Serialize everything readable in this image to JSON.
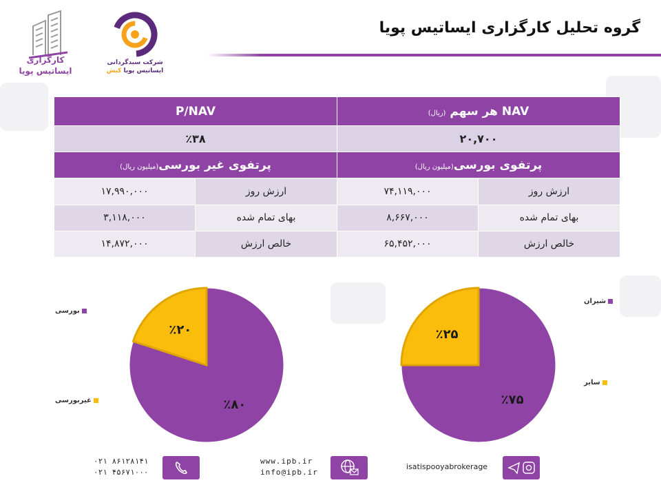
{
  "header": {
    "title": "گروه تحلیل کارگزاری ایساتیس پویا",
    "logo_left_text": [
      "کارگزاری",
      "ایساتیس پویا"
    ],
    "logo_mid_text": [
      "شرکت سبدگردانی",
      "ایساتیس پویا",
      "کیش"
    ]
  },
  "table": {
    "nav_label": "NAV",
    "nav_per_share": "هر سهم",
    "nav_unit": "(ریال)",
    "pnav_label": "P/NAV",
    "nav_value": "۲۰,۷۰۰",
    "pnav_value": "٪۳۸",
    "bourse_title": "پرتفوی بورسی",
    "nonbourse_title": "پرتفوی غیر بورسی",
    "unit_million": "(میلیون ریال)",
    "rows": [
      {
        "label": "ارزش روز",
        "bourse": "۷۴,۱۱۹,۰۰۰",
        "nonbourse": "۱۷,۹۹۰,۰۰۰"
      },
      {
        "label": "بهای تمام شده",
        "bourse": "۸,۶۶۷,۰۰۰",
        "nonbourse": "۳,۱۱۸,۰۰۰"
      },
      {
        "label": "خالص ارزش",
        "bourse": "۶۵,۴۵۲,۰۰۰",
        "nonbourse": "۱۴,۸۷۲,۰۰۰"
      }
    ]
  },
  "chart_data": [
    {
      "type": "pie",
      "slices": [
        {
          "name": "بورسی",
          "value": 80,
          "label": "٪۸۰",
          "color": "#8f44a5"
        },
        {
          "name": "غیربورسی",
          "value": 20,
          "label": "٪۲۰",
          "color": "#fbbd0b"
        }
      ]
    },
    {
      "type": "pie",
      "slices": [
        {
          "name": "شیران",
          "value": 75,
          "label": "٪۷۵",
          "color": "#8f44a5"
        },
        {
          "name": "سایر",
          "value": 25,
          "label": "٪۲۵",
          "color": "#fbbd0b"
        }
      ]
    }
  ],
  "footer": {
    "phone1": "۰۲۱ ۸۶۱۲۸۱۴۱",
    "phone2": "۰۲۱ ۴۵۶۷۱۰۰۰",
    "website": "www.ipb.ir",
    "email": "info@ipb.ir",
    "social": "isatispooyabrokerage",
    "icons": [
      "phone-icon",
      "globe-mail-icon",
      "telegram-instagram-icon"
    ]
  },
  "colors": {
    "purple": "#8f44a5",
    "yellow": "#fbbd0b"
  }
}
